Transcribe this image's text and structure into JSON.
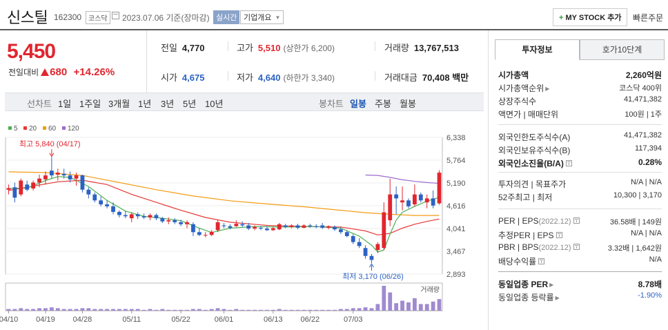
{
  "header": {
    "stock_name": "신스틸",
    "stock_code": "162300",
    "market": "코스닥",
    "date_basis": "2023.07.06 기준(장마감)",
    "realtime_label": "실시간",
    "overview_label": "기업개요",
    "mystock_label": "MY STOCK 추가",
    "quick_order_label": "빠른주문"
  },
  "price": {
    "current": "5,450",
    "change_label": "전일대비",
    "change_amount": "680",
    "change_percent": "+14.26%"
  },
  "quotes": {
    "prev_close_label": "전일",
    "prev_close": "4,770",
    "high_label": "고가",
    "high": "5,510",
    "upper_limit": "(상한가 6,200)",
    "volume_label": "거래량",
    "volume": "13,767,513",
    "open_label": "시가",
    "open": "4,675",
    "low_label": "저가",
    "low": "4,640",
    "lower_limit": "(하한가 3,340)",
    "amount_label": "거래대금",
    "amount": "70,408 백만"
  },
  "toolbar": {
    "period_label": "선차트",
    "periods": [
      "1일",
      "1주일",
      "3개월",
      "1년",
      "3년",
      "5년",
      "10년"
    ],
    "candle_label": "봉차트",
    "candles": [
      "일봉",
      "주봉",
      "월봉"
    ],
    "active_candle": "일봉"
  },
  "legend": [
    {
      "label": "5",
      "color": "#4caf50"
    },
    {
      "label": "20",
      "color": "#e53935"
    },
    {
      "label": "60",
      "color": "#f39c12"
    },
    {
      "label": "120",
      "color": "#9c6ad0"
    }
  ],
  "chart_data": {
    "type": "candlestick",
    "y_ticks": [
      "6,338",
      "5,764",
      "5,190",
      "4,616",
      "4,041",
      "3,467",
      "2,893"
    ],
    "ylim": [
      2893,
      6338
    ],
    "x_ticks": [
      "04/10",
      "04/19",
      "04/28",
      "05/11",
      "05/22",
      "06/01",
      "06/13",
      "06/22",
      "07/03"
    ],
    "high_annotation": "최고 5,840 (04/17)",
    "low_annotation": "최저 3,170 (06/26)",
    "volume_label": "거래량",
    "up_color": "#e0262f",
    "down_color": "#2b62c4",
    "candles": [
      {
        "o": 5020,
        "h": 5150,
        "l": 4900,
        "c": 5060
      },
      {
        "o": 5080,
        "h": 5200,
        "l": 4700,
        "c": 4820
      },
      {
        "o": 4900,
        "h": 5300,
        "l": 4850,
        "c": 5250
      },
      {
        "o": 5150,
        "h": 5250,
        "l": 4980,
        "c": 5020
      },
      {
        "o": 5050,
        "h": 5250,
        "l": 5000,
        "c": 5200
      },
      {
        "o": 5200,
        "h": 5400,
        "l": 5080,
        "c": 5300
      },
      {
        "o": 5280,
        "h": 5480,
        "l": 5150,
        "c": 5380
      },
      {
        "o": 5500,
        "h": 5840,
        "l": 5300,
        "c": 5380
      },
      {
        "o": 5400,
        "h": 5550,
        "l": 5250,
        "c": 5450
      },
      {
        "o": 5420,
        "h": 5550,
        "l": 5300,
        "c": 5380
      },
      {
        "o": 5380,
        "h": 5480,
        "l": 5200,
        "c": 5280
      },
      {
        "o": 5300,
        "h": 5450,
        "l": 5120,
        "c": 5380
      },
      {
        "o": 5380,
        "h": 5400,
        "l": 4950,
        "c": 5020
      },
      {
        "o": 5020,
        "h": 5080,
        "l": 4800,
        "c": 4900
      },
      {
        "o": 4900,
        "h": 4950,
        "l": 4700,
        "c": 4750
      },
      {
        "o": 4750,
        "h": 4850,
        "l": 4600,
        "c": 4650
      },
      {
        "o": 4650,
        "h": 4750,
        "l": 4550,
        "c": 4600
      },
      {
        "o": 4600,
        "h": 4700,
        "l": 4400,
        "c": 4460
      },
      {
        "o": 4460,
        "h": 4500,
        "l": 4320,
        "c": 4380
      },
      {
        "o": 4380,
        "h": 4480,
        "l": 4300,
        "c": 4350
      },
      {
        "o": 4300,
        "h": 4450,
        "l": 4200,
        "c": 4400
      },
      {
        "o": 4400,
        "h": 4450,
        "l": 4280,
        "c": 4350
      },
      {
        "o": 4350,
        "h": 4420,
        "l": 4280,
        "c": 4320
      },
      {
        "o": 4320,
        "h": 4420,
        "l": 4250,
        "c": 4380
      },
      {
        "o": 4380,
        "h": 4420,
        "l": 4250,
        "c": 4300
      },
      {
        "o": 4300,
        "h": 4330,
        "l": 4180,
        "c": 4220
      },
      {
        "o": 4220,
        "h": 4320,
        "l": 4150,
        "c": 4250
      },
      {
        "o": 4250,
        "h": 4300,
        "l": 4150,
        "c": 4200
      },
      {
        "o": 4200,
        "h": 4260,
        "l": 4100,
        "c": 4150
      },
      {
        "o": 4150,
        "h": 4250,
        "l": 4050,
        "c": 4200
      },
      {
        "o": 4150,
        "h": 4200,
        "l": 3850,
        "c": 3950
      },
      {
        "o": 3950,
        "h": 4050,
        "l": 3850,
        "c": 3880
      },
      {
        "o": 3880,
        "h": 3950,
        "l": 3820,
        "c": 3880
      },
      {
        "o": 3880,
        "h": 4000,
        "l": 3850,
        "c": 3960
      },
      {
        "o": 4000,
        "h": 4250,
        "l": 3950,
        "c": 4200
      },
      {
        "o": 4120,
        "h": 4180,
        "l": 4050,
        "c": 4100
      },
      {
        "o": 4100,
        "h": 4150,
        "l": 4020,
        "c": 4060
      },
      {
        "o": 4100,
        "h": 4250,
        "l": 4080,
        "c": 4160
      },
      {
        "o": 4150,
        "h": 4220,
        "l": 4080,
        "c": 4120
      },
      {
        "o": 4120,
        "h": 4180,
        "l": 4000,
        "c": 4040
      },
      {
        "o": 4040,
        "h": 4120,
        "l": 4000,
        "c": 4080
      },
      {
        "o": 4060,
        "h": 4100,
        "l": 4000,
        "c": 4040
      },
      {
        "o": 4040,
        "h": 4100,
        "l": 3980,
        "c": 4000
      },
      {
        "o": 4000,
        "h": 4080,
        "l": 3980,
        "c": 4050
      },
      {
        "o": 4020,
        "h": 4180,
        "l": 4000,
        "c": 4150
      },
      {
        "o": 4120,
        "h": 4160,
        "l": 4050,
        "c": 4080
      },
      {
        "o": 4080,
        "h": 4150,
        "l": 4050,
        "c": 4120
      },
      {
        "o": 4120,
        "h": 4160,
        "l": 4020,
        "c": 4060
      },
      {
        "o": 4060,
        "h": 4150,
        "l": 4050,
        "c": 4120
      },
      {
        "o": 4120,
        "h": 4160,
        "l": 4060,
        "c": 4100
      },
      {
        "o": 4100,
        "h": 4150,
        "l": 4050,
        "c": 4080
      },
      {
        "o": 4120,
        "h": 4180,
        "l": 4030,
        "c": 4060
      },
      {
        "o": 4060,
        "h": 4120,
        "l": 4020,
        "c": 4100
      },
      {
        "o": 4080,
        "h": 4120,
        "l": 3980,
        "c": 4020
      },
      {
        "o": 4020,
        "h": 4080,
        "l": 3900,
        "c": 3950
      },
      {
        "o": 3950,
        "h": 4000,
        "l": 3820,
        "c": 3850
      },
      {
        "o": 3850,
        "h": 3900,
        "l": 3650,
        "c": 3700
      },
      {
        "o": 3700,
        "h": 3800,
        "l": 3550,
        "c": 3600
      },
      {
        "o": 3550,
        "h": 3620,
        "l": 3280,
        "c": 3350
      },
      {
        "o": 3350,
        "h": 3400,
        "l": 3170,
        "c": 3250
      },
      {
        "o": 3500,
        "h": 3700,
        "l": 3420,
        "c": 3650
      },
      {
        "o": 3550,
        "h": 4700,
        "l": 3500,
        "c": 4450
      },
      {
        "o": 4250,
        "h": 5300,
        "l": 4100,
        "c": 4900
      },
      {
        "o": 4900,
        "h": 5100,
        "l": 4400,
        "c": 4800
      },
      {
        "o": 4700,
        "h": 5100,
        "l": 4500,
        "c": 4750
      },
      {
        "o": 4750,
        "h": 4800,
        "l": 4550,
        "c": 4600
      },
      {
        "o": 4650,
        "h": 5150,
        "l": 4600,
        "c": 4900
      },
      {
        "o": 4900,
        "h": 4950,
        "l": 4700,
        "c": 4750
      },
      {
        "o": 4700,
        "h": 4900,
        "l": 4550,
        "c": 4800
      },
      {
        "o": 4800,
        "h": 5000,
        "l": 4550,
        "c": 4620
      },
      {
        "o": 4675,
        "h": 5510,
        "l": 4640,
        "c": 5450
      }
    ],
    "volumes": [
      2,
      2,
      3,
      2,
      2,
      3,
      3,
      4,
      3,
      2,
      2,
      2,
      3,
      3,
      2,
      2,
      2,
      2,
      2,
      2,
      2,
      2,
      1,
      2,
      1,
      2,
      1,
      1,
      1,
      1,
      2,
      2,
      1,
      2,
      3,
      2,
      1,
      2,
      1,
      1,
      1,
      1,
      1,
      1,
      2,
      1,
      1,
      1,
      1,
      1,
      1,
      1,
      1,
      1,
      2,
      2,
      3,
      3,
      4,
      3,
      8,
      30,
      22,
      9,
      12,
      10,
      15,
      8,
      8,
      11,
      14
    ],
    "ma5": [
      [
        0,
        5050
      ],
      [
        3,
        5060
      ],
      [
        6,
        5250
      ],
      [
        8,
        5350
      ],
      [
        10,
        5330
      ],
      [
        13,
        5100
      ],
      [
        16,
        4750
      ],
      [
        19,
        4480
      ],
      [
        22,
        4350
      ],
      [
        25,
        4300
      ],
      [
        28,
        4240
      ],
      [
        31,
        4050
      ],
      [
        33,
        3940
      ],
      [
        36,
        4050
      ],
      [
        40,
        4090
      ],
      [
        45,
        4080
      ],
      [
        50,
        4090
      ],
      [
        54,
        4050
      ],
      [
        57,
        3850
      ],
      [
        59,
        3620
      ],
      [
        60,
        3450
      ],
      [
        61,
        3500
      ],
      [
        62,
        3900
      ],
      [
        63,
        4250
      ],
      [
        64,
        4450
      ],
      [
        66,
        4600
      ],
      [
        68,
        4730
      ],
      [
        70,
        4830
      ]
    ],
    "ma20": [
      [
        0,
        5000
      ],
      [
        8,
        5220
      ],
      [
        12,
        5260
      ],
      [
        16,
        5150
      ],
      [
        20,
        4900
      ],
      [
        24,
        4700
      ],
      [
        28,
        4500
      ],
      [
        32,
        4320
      ],
      [
        36,
        4200
      ],
      [
        42,
        4120
      ],
      [
        48,
        4090
      ],
      [
        54,
        4080
      ],
      [
        58,
        3980
      ],
      [
        60,
        3880
      ],
      [
        62,
        3920
      ],
      [
        64,
        4050
      ],
      [
        66,
        4150
      ],
      [
        68,
        4220
      ],
      [
        70,
        4280
      ]
    ],
    "ma60": [
      [
        0,
        5470
      ],
      [
        6,
        5450
      ],
      [
        12,
        5380
      ],
      [
        18,
        5200
      ],
      [
        24,
        5020
      ],
      [
        30,
        4860
      ],
      [
        36,
        4740
      ],
      [
        42,
        4660
      ],
      [
        48,
        4590
      ],
      [
        54,
        4500
      ],
      [
        58,
        4440
      ],
      [
        62,
        4400
      ],
      [
        66,
        4370
      ],
      [
        70,
        4370
      ]
    ],
    "ma120": [
      [
        58,
        5390
      ],
      [
        60,
        5380
      ],
      [
        62,
        5330
      ],
      [
        64,
        5270
      ],
      [
        66,
        5230
      ],
      [
        68,
        5200
      ],
      [
        70,
        5180
      ]
    ]
  },
  "right_panel": {
    "tab_info": "투자정보",
    "tab_orderbook": "호가10단계",
    "rows": [
      {
        "key": "시가총액",
        "value": "2,260억원",
        "key_bold": true,
        "value_bold": true
      },
      {
        "key": "시가총액순위",
        "value": "코스닥 400위",
        "caret": true
      },
      {
        "key": "상장주식수",
        "value": "41,471,382"
      },
      {
        "key": "액면가 | 매매단위",
        "value": "100원 | 1주"
      },
      {
        "key": "외국인한도주식수(A)",
        "value": "41,471,382"
      },
      {
        "key": "외국인보유주식수(B)",
        "value": "117,394"
      },
      {
        "key": "외국인소진율(B/A)",
        "value": "0.28%",
        "key_bold": true,
        "value_bold": true,
        "tip": true
      },
      {
        "key": "투자의견 | 목표주가",
        "value": "N/A | N/A"
      },
      {
        "key": "52주최고 | 최저",
        "value": "10,300 | 3,170"
      },
      {
        "key": "PER | EPS",
        "key_sub": "(2022.12)",
        "value": "36.58배 | 149원",
        "tip": true
      },
      {
        "key": "추정PER | EPS",
        "value": "N/A | N/A",
        "tip": true
      },
      {
        "key": "PBR | BPS",
        "key_sub": "(2022.12)",
        "value": "3.32배 | 1,642원",
        "tip": true
      },
      {
        "key": "배당수익률",
        "value": "N/A",
        "tip": true
      },
      {
        "key": "동일업종 PER",
        "value": "8.78배",
        "key_bold": true,
        "value_bold": true,
        "caret": true
      },
      {
        "key": "동일업종 등락률",
        "value": "-1.90%",
        "caret": true,
        "value_blue": true
      }
    ]
  }
}
